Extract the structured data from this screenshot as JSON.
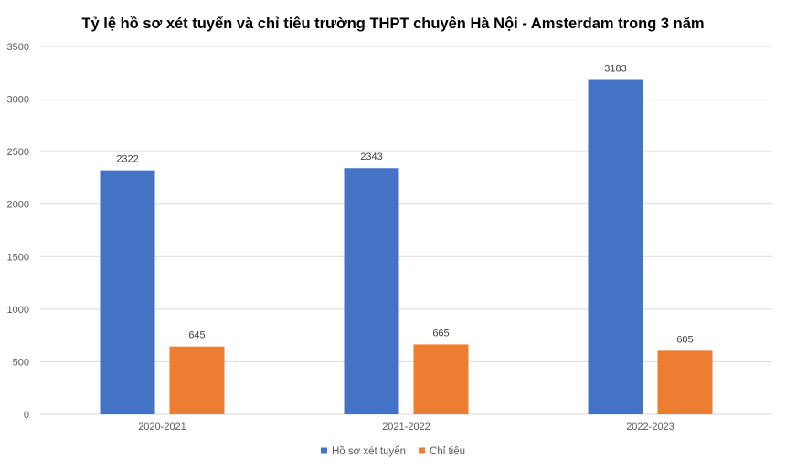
{
  "chart_data": {
    "type": "bar",
    "title": "Tỷ lệ hồ sơ xét tuyển và chỉ tiêu trường THPT chuyên Hà Nội - Amsterdam trong 3 năm",
    "categories": [
      "2020-2021",
      "2021-2022",
      "2022-2023"
    ],
    "series": [
      {
        "name": "Hồ sơ xét tuyển",
        "values": [
          2322,
          2343,
          3183
        ],
        "color": "#4472c4"
      },
      {
        "name": "Chỉ tiêu",
        "values": [
          645,
          665,
          605
        ],
        "color": "#ed7d31"
      }
    ],
    "xlabel": "",
    "ylabel": "",
    "ylim": [
      0,
      3500
    ],
    "yticks": [
      0,
      500,
      1000,
      1500,
      2000,
      2500,
      3000,
      3500
    ],
    "grid": true,
    "legend_position": "bottom"
  }
}
